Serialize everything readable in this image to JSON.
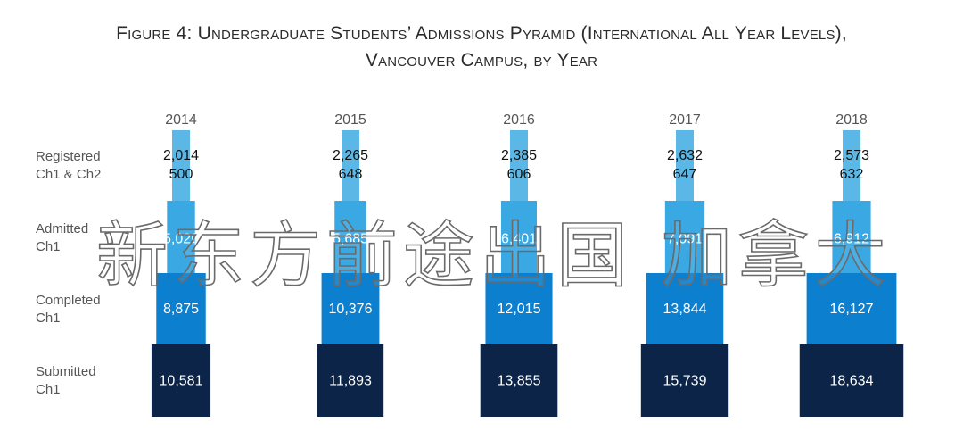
{
  "chart_data": {
    "type": "bar",
    "title_line1": "Figure 4: Undergraduate Students’ Admissions Pyramid (International All Year Levels),",
    "title_line2": "Vancouver Campus, by Year",
    "categories": [
      "2014",
      "2015",
      "2016",
      "2017",
      "2018"
    ],
    "stage_labels": [
      [
        "Registered",
        "Ch1 & Ch2"
      ],
      [
        "Admitted",
        "Ch1"
      ],
      [
        "Completed",
        "Ch1"
      ],
      [
        "Submitted",
        "Ch1"
      ]
    ],
    "series": [
      {
        "name": "Registered Ch1 & Ch2",
        "values": [
          2014,
          2265,
          2385,
          2632,
          2573
        ],
        "labels": [
          "2,014",
          "2,265",
          "2,385",
          "2,632",
          "2,573"
        ]
      },
      {
        "name": "Registered Ch1 & Ch2",
        "values": [
          500,
          648,
          606,
          647,
          632
        ],
        "labels": [
          "500",
          "648",
          "606",
          "647",
          "632"
        ]
      },
      {
        "name": "Admitted Ch1",
        "values": [
          5026,
          5685,
          6401,
          7091,
          6912
        ],
        "labels": [
          "5,026",
          "5,685",
          "6,401",
          "7,091",
          "6,912"
        ]
      },
      {
        "name": "Completed Ch1",
        "values": [
          8875,
          10376,
          12015,
          13844,
          16127
        ],
        "labels": [
          "8,875",
          "10,376",
          "12,015",
          "13,844",
          "16,127"
        ]
      },
      {
        "name": "Submitted Ch1",
        "values": [
          10581,
          11893,
          13855,
          15739,
          18634
        ],
        "labels": [
          "10,581",
          "11,893",
          "13,855",
          "15,739",
          "18,634"
        ]
      }
    ],
    "colors": {
      "registered": "#5bb8e6",
      "admitted": "#3aa9e3",
      "completed": "#0d7fcf",
      "submitted": "#0b2447"
    },
    "grid": false
  },
  "watermark": "新东方前途出国 加拿大"
}
